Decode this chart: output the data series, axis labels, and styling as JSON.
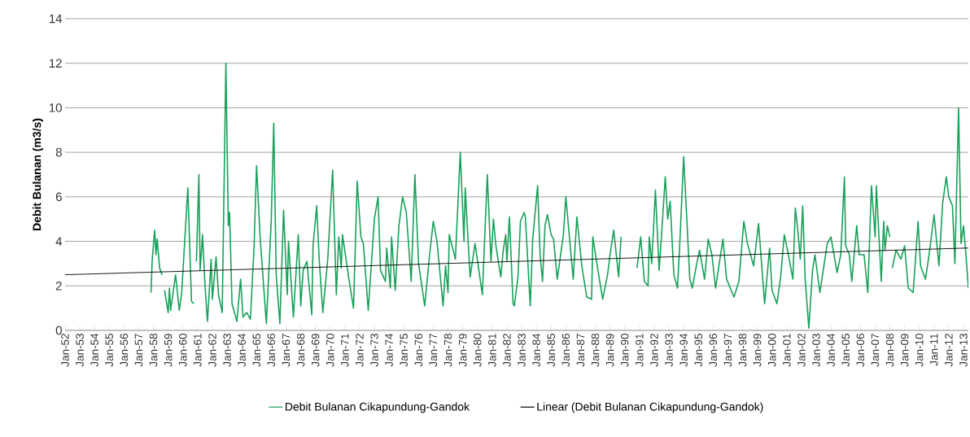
{
  "chart_data": {
    "type": "line",
    "ylabel": "Debit Bulanan (m3/s)",
    "grid": "y",
    "legend": "bottom",
    "ylim": [
      0,
      14
    ],
    "yticks": [
      0,
      2,
      4,
      6,
      8,
      10,
      12,
      14
    ],
    "xlim": [
      "1952-01",
      "2013-05"
    ],
    "xticks": [
      {
        "value": "1952-01",
        "label": "Jan-52"
      },
      {
        "value": "1953-01",
        "label": "Jan-53"
      },
      {
        "value": "1954-01",
        "label": "Jan-54"
      },
      {
        "value": "1955-01",
        "label": "Jan-55"
      },
      {
        "value": "1956-01",
        "label": "Jan-56"
      },
      {
        "value": "1957-01",
        "label": "Jan-57"
      },
      {
        "value": "1958-01",
        "label": "Jan-58"
      },
      {
        "value": "1959-01",
        "label": "Jan-59"
      },
      {
        "value": "1960-01",
        "label": "Jan-60"
      },
      {
        "value": "1961-01",
        "label": "Jan-61"
      },
      {
        "value": "1962-01",
        "label": "Jan-62"
      },
      {
        "value": "1963-01",
        "label": "Jan-63"
      },
      {
        "value": "1964-01",
        "label": "Jan-64"
      },
      {
        "value": "1965-01",
        "label": "Jan-65"
      },
      {
        "value": "1966-01",
        "label": "Jan-66"
      },
      {
        "value": "1967-01",
        "label": "Jan-67"
      },
      {
        "value": "1968-01",
        "label": "Jan-68"
      },
      {
        "value": "1969-01",
        "label": "Jan-69"
      },
      {
        "value": "1970-01",
        "label": "Jan-70"
      },
      {
        "value": "1971-01",
        "label": "Jan-71"
      },
      {
        "value": "1972-01",
        "label": "Jan-72"
      },
      {
        "value": "1973-01",
        "label": "Jan-73"
      },
      {
        "value": "1974-01",
        "label": "Jan-74"
      },
      {
        "value": "1975-01",
        "label": "Jan-75"
      },
      {
        "value": "1976-01",
        "label": "Jan-76"
      },
      {
        "value": "1977-01",
        "label": "Jan-77"
      },
      {
        "value": "1978-01",
        "label": "Jan-78"
      },
      {
        "value": "1979-01",
        "label": "Jan-79"
      },
      {
        "value": "1980-01",
        "label": "Jan-80"
      },
      {
        "value": "1981-01",
        "label": "Jan-81"
      },
      {
        "value": "1982-01",
        "label": "Jan-82"
      },
      {
        "value": "1983-01",
        "label": "Jan-83"
      },
      {
        "value": "1984-01",
        "label": "Jan-84"
      },
      {
        "value": "1985-01",
        "label": "Jan-85"
      },
      {
        "value": "1986-01",
        "label": "Jan-86"
      },
      {
        "value": "1987-01",
        "label": "Jan-87"
      },
      {
        "value": "1988-01",
        "label": "Jan-88"
      },
      {
        "value": "1989-01",
        "label": "Jan-89"
      },
      {
        "value": "1990-01",
        "label": "Jan-90"
      },
      {
        "value": "1991-01",
        "label": "Jan-91"
      },
      {
        "value": "1992-01",
        "label": "Jan-92"
      },
      {
        "value": "1993-01",
        "label": "Jan-93"
      },
      {
        "value": "1994-01",
        "label": "Jan-94"
      },
      {
        "value": "1995-01",
        "label": "Jan-95"
      },
      {
        "value": "1996-01",
        "label": "Jan-96"
      },
      {
        "value": "1997-01",
        "label": "Jan-97"
      },
      {
        "value": "1998-01",
        "label": "Jan-98"
      },
      {
        "value": "1999-01",
        "label": "Jan-99"
      },
      {
        "value": "2000-01",
        "label": "Jan-00"
      },
      {
        "value": "2001-01",
        "label": "Jan-01"
      },
      {
        "value": "2002-01",
        "label": "Jan-02"
      },
      {
        "value": "2003-01",
        "label": "Jan-03"
      },
      {
        "value": "2004-01",
        "label": "Jan-04"
      },
      {
        "value": "2005-01",
        "label": "Jan-05"
      },
      {
        "value": "2006-01",
        "label": "Jan-06"
      },
      {
        "value": "2007-01",
        "label": "Jan-07"
      },
      {
        "value": "2008-01",
        "label": "Jan-08"
      },
      {
        "value": "2009-01",
        "label": "Jan-09"
      },
      {
        "value": "2010-01",
        "label": "Jan-10"
      },
      {
        "value": "2011-01",
        "label": "Jan-11"
      },
      {
        "value": "2012-01",
        "label": "Jan-12"
      },
      {
        "value": "2013-01",
        "label": "Jan-13"
      }
    ],
    "series": [
      {
        "name": "Debit Bulanan Cikapundung-Gandok",
        "color": "#19a05a",
        "x": [
          "1957-11",
          "1957-12",
          "1958-02",
          "1958-03",
          "1958-04",
          "1958-06",
          "1958-08",
          "1958-09",
          "1958-10",
          "1959-01",
          "1959-02",
          "1959-03",
          "1959-07",
          "1959-10",
          "1959-12",
          "1960-05",
          "1960-08",
          "1960-10",
          "1960-11",
          "1960-12",
          "1961-02",
          "1961-03",
          "1961-05",
          "1961-07",
          "1961-09",
          "1961-12",
          "1962-01",
          "1962-04",
          "1962-06",
          "1962-09",
          "1962-12",
          "1963-02",
          "1963-03",
          "1963-05",
          "1963-09",
          "1963-12",
          "1964-02",
          "1964-05",
          "1964-08",
          "1964-11",
          "1965-01",
          "1965-04",
          "1965-09",
          "1966-01",
          "1966-03",
          "1966-05",
          "1966-08",
          "1966-11",
          "1967-02",
          "1967-03",
          "1967-07",
          "1967-11",
          "1968-01",
          "1968-03",
          "1968-06",
          "1968-10",
          "1968-11",
          "1969-02",
          "1969-04",
          "1969-07",
          "1969-11",
          "1970-03",
          "1970-06",
          "1970-08",
          "1970-10",
          "1970-11",
          "1971-04",
          "1971-08",
          "1971-11",
          "1972-02",
          "1972-04",
          "1972-08",
          "1973-01",
          "1973-04",
          "1973-06",
          "1973-10",
          "1973-11",
          "1974-02",
          "1974-03",
          "1974-06",
          "1974-09",
          "1974-12",
          "1975-03",
          "1975-07",
          "1975-10",
          "1976-01",
          "1976-06",
          "1976-10",
          "1977-01",
          "1977-04",
          "1977-09",
          "1977-11",
          "1978-01",
          "1978-02",
          "1978-07",
          "1978-11",
          "1979-02",
          "1979-03",
          "1979-07",
          "1979-11",
          "1980-05",
          "1980-09",
          "1980-12",
          "1981-02",
          "1981-04",
          "1981-08",
          "1981-10",
          "1981-12",
          "1982-01",
          "1982-03",
          "1982-06",
          "1982-07",
          "1982-10",
          "1982-12",
          "1983-03",
          "1983-04",
          "1983-08",
          "1983-10",
          "1984-02",
          "1984-04",
          "1984-06",
          "1984-08",
          "1984-10",
          "1985-01",
          "1985-03",
          "1985-06",
          "1985-11",
          "1986-01",
          "1986-07",
          "1986-10",
          "1987-02",
          "1987-06",
          "1987-10",
          "1987-11",
          "1988-02",
          "1988-07",
          "1988-11",
          "1989-01",
          "1989-04",
          "1989-08",
          "1989-10",
          "1990-04",
          "1990-11",
          "1991-02",
          "1991-05",
          "1991-08",
          "1991-09",
          "1991-11",
          "1992-02",
          "1992-05",
          "1992-07",
          "1992-10",
          "1992-12",
          "1993-02",
          "1993-05",
          "1993-08",
          "1993-10",
          "1994-01",
          "1994-06",
          "1994-08",
          "1994-12",
          "1995-02",
          "1995-06",
          "1995-09",
          "1995-12",
          "1996-03",
          "1996-09",
          "1996-12",
          "1997-06",
          "1997-10",
          "1998-02",
          "1998-05",
          "1998-10",
          "1999-02",
          "1999-07",
          "1999-11",
          "2000-01",
          "2000-05",
          "2000-08",
          "2000-11",
          "2001-02",
          "2001-06",
          "2001-08",
          "2001-10",
          "2001-12",
          "2002-02",
          "2002-04",
          "2002-07",
          "2002-10",
          "2002-12",
          "2003-04",
          "2003-10",
          "2004-01",
          "2004-06",
          "2004-09",
          "2004-12",
          "2005-01",
          "2005-04",
          "2005-06",
          "2005-10",
          "2005-12",
          "2006-04",
          "2006-07",
          "2006-10",
          "2007-01",
          "2007-02",
          "2007-06",
          "2007-08",
          "2007-09",
          "2007-11",
          "2008-01",
          "2008-02",
          "2008-03",
          "2008-06",
          "2008-10",
          "2009-01",
          "2009-04",
          "2009-08",
          "2009-12",
          "2010-02",
          "2010-06",
          "2010-09",
          "2011-01",
          "2011-05",
          "2011-08",
          "2011-11",
          "2012-01",
          "2012-04",
          "2012-06",
          "2012-09",
          "2012-11",
          "2013-01",
          "2013-03",
          "2013-05"
        ],
        "values": [
          1.7,
          3.2,
          4.5,
          3.4,
          4.1,
          2.8,
          2.5,
          null,
          1.8,
          0.8,
          1.9,
          0.9,
          2.5,
          0.9,
          1.7,
          6.4,
          1.3,
          1.2,
          null,
          3.1,
          7.0,
          2.7,
          4.3,
          2.0,
          0.4,
          3.2,
          1.4,
          3.3,
          1.6,
          0.8,
          12.0,
          4.7,
          5.3,
          1.2,
          0.4,
          2.3,
          0.6,
          0.8,
          0.5,
          3.8,
          7.4,
          4.1,
          0.3,
          5.0,
          9.3,
          2.5,
          0.3,
          5.4,
          1.6,
          4.0,
          0.6,
          4.3,
          1.1,
          2.7,
          3.1,
          0.7,
          3.8,
          5.6,
          3.2,
          0.8,
          3.2,
          7.2,
          1.6,
          4.2,
          2.8,
          4.3,
          2.4,
          1.0,
          6.7,
          4.2,
          3.9,
          0.9,
          5.0,
          6.0,
          2.7,
          2.2,
          3.7,
          1.9,
          4.2,
          1.8,
          4.7,
          6.0,
          5.3,
          2.2,
          7.0,
          3.0,
          1.1,
          3.4,
          4.9,
          4.0,
          1.1,
          2.9,
          1.7,
          4.3,
          3.2,
          8.0,
          4.0,
          6.4,
          2.4,
          3.9,
          1.6,
          7.0,
          3.1,
          5.0,
          3.8,
          2.4,
          3.6,
          4.3,
          3.1,
          5.1,
          1.2,
          1.1,
          2.4,
          4.9,
          5.3,
          5.1,
          1.1,
          4.1,
          6.5,
          3.4,
          2.2,
          4.7,
          5.2,
          4.3,
          4.1,
          2.3,
          4.3,
          6.0,
          2.3,
          5.1,
          2.9,
          1.5,
          1.4,
          4.2,
          3.1,
          1.4,
          2.5,
          3.4,
          4.5,
          2.4,
          4.2,
          null,
          2.8,
          4.2,
          2.2,
          2.0,
          4.2,
          3.0,
          6.3,
          2.7,
          4.3,
          6.9,
          5.0,
          5.8,
          2.5,
          1.9,
          4.1,
          7.8,
          2.3,
          1.9,
          3.1,
          3.6,
          2.3,
          4.1,
          3.4,
          1.9,
          4.1,
          2.3,
          1.5,
          2.2,
          4.9,
          3.9,
          2.9,
          4.8,
          1.2,
          3.7,
          1.8,
          1.2,
          2.4,
          4.3,
          3.5,
          2.3,
          5.5,
          4.5,
          3.2,
          5.6,
          2.3,
          0.1,
          2.7,
          3.4,
          1.7,
          3.9,
          4.2,
          2.6,
          3.4,
          6.9,
          3.8,
          3.4,
          2.2,
          4.7,
          3.4,
          3.4,
          1.7,
          6.5,
          4.2,
          6.5,
          2.2,
          4.9,
          3.6,
          4.7,
          4.2,
          null,
          2.8,
          3.6,
          3.2,
          3.8,
          1.9,
          1.7,
          4.9,
          2.9,
          2.3,
          3.4,
          5.2,
          2.9,
          5.7,
          6.9,
          6.0,
          5.6,
          3.0,
          10.0,
          3.9,
          4.7,
          3.4,
          1.9
        ]
      },
      {
        "name": "Linear (Debit Bulanan Cikapundung-Gandok)",
        "color": "#000000",
        "type": "line",
        "x": [
          "1952-01",
          "2013-05"
        ],
        "values": [
          2.5,
          3.7
        ]
      }
    ]
  }
}
